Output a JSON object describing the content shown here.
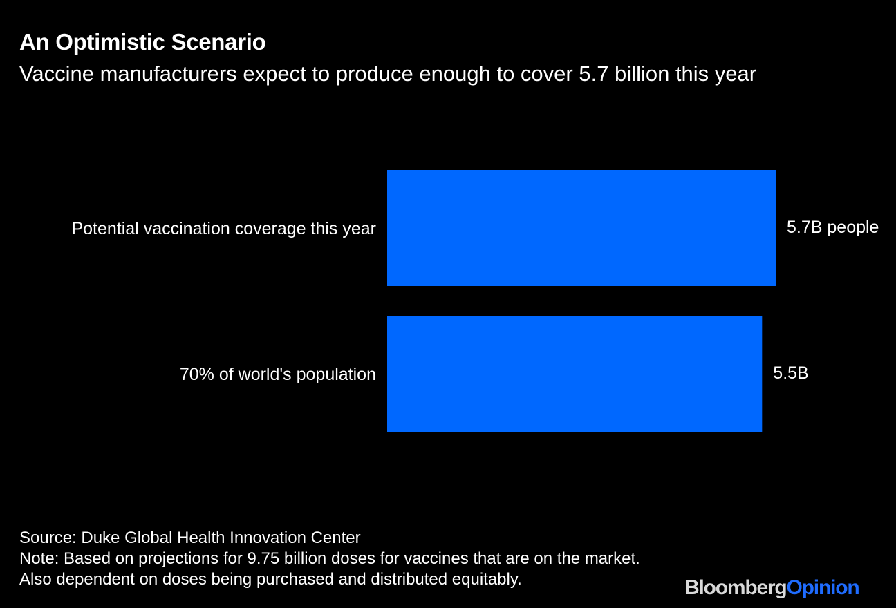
{
  "header": {
    "title": "An Optimistic Scenario",
    "subtitle": "Vaccine manufacturers expect to produce enough to cover 5.7 billion this year"
  },
  "chart_data": {
    "type": "bar",
    "orientation": "horizontal",
    "categories": [
      "Potential vaccination coverage this year",
      "70% of world's population"
    ],
    "values": [
      5.7,
      5.5
    ],
    "data_labels": [
      "5.7B people",
      "5.5B"
    ],
    "unit": "billion people",
    "bar_color": "#0068ff",
    "grid": false,
    "legend": "none"
  },
  "footer": {
    "source": "Source: Duke Global Health Innovation Center",
    "note": "Note: Based on projections for 9.75 billion doses for vaccines that are on the market. Also dependent on doses being purchased and distributed equitably."
  },
  "logo": {
    "brand": "Bloomberg",
    "section": "Opinion",
    "brand_color": "#d9d9d9",
    "section_color": "#1f6cff"
  }
}
